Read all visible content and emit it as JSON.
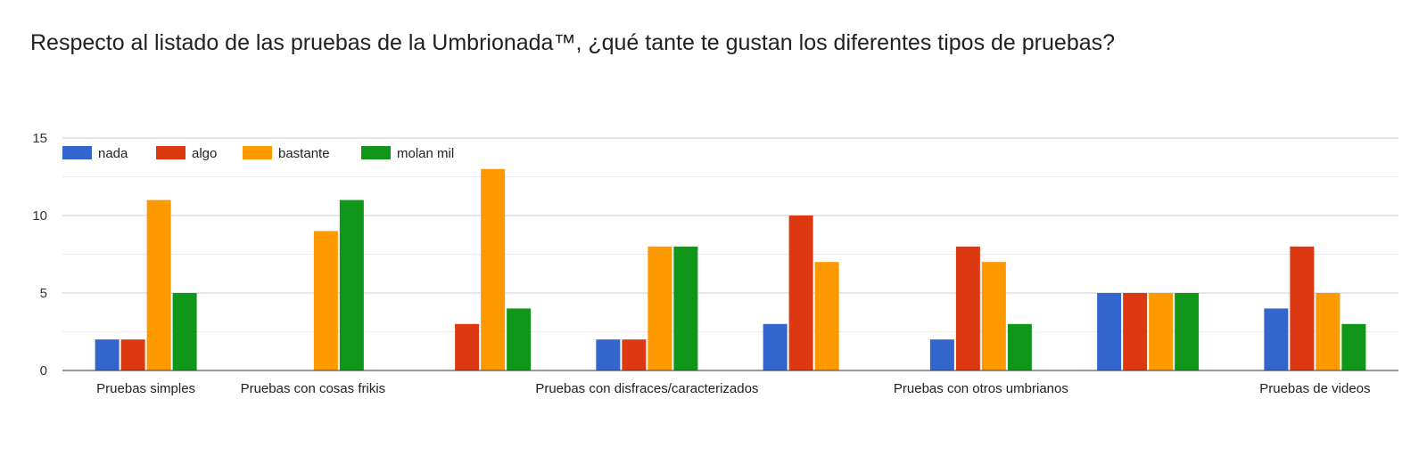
{
  "title": "Respecto al listado de las pruebas de la Umbrionada™, ¿qué tante te gustan los diferentes tipos de pruebas?",
  "colors": {
    "nada": "#3366cc",
    "algo": "#dc3912",
    "bastante": "#ff9900",
    "molan_mil": "#109618",
    "grid_major": "#cccccc",
    "grid_minor": "#ebebeb",
    "axis": "#333333"
  },
  "chart_data": {
    "type": "bar",
    "title": "Respecto al listado de las pruebas de la Umbrionada™, ¿qué tante te gustan los diferentes tipos de pruebas?",
    "xlabel": "",
    "ylabel": "",
    "ylim": [
      0,
      15
    ],
    "yticks": [
      "0",
      "5",
      "10",
      "15"
    ],
    "grid": true,
    "legend_position": "top-left",
    "categories": [
      "Pruebas simples",
      "Pruebas con cosas frikis",
      "",
      "Pruebas con disfraces/caracterizados",
      "",
      "Pruebas con otros umbrianos",
      "",
      "Pruebas de videos"
    ],
    "series": [
      {
        "name": "nada",
        "values": [
          2,
          0,
          0,
          2,
          3,
          2,
          5,
          4
        ]
      },
      {
        "name": "algo",
        "values": [
          2,
          0,
          3,
          2,
          10,
          8,
          5,
          8
        ]
      },
      {
        "name": "bastante",
        "values": [
          11,
          9,
          13,
          8,
          7,
          7,
          5,
          5
        ]
      },
      {
        "name": "molan mil",
        "values": [
          5,
          11,
          4,
          8,
          0,
          3,
          5,
          3
        ]
      }
    ]
  }
}
